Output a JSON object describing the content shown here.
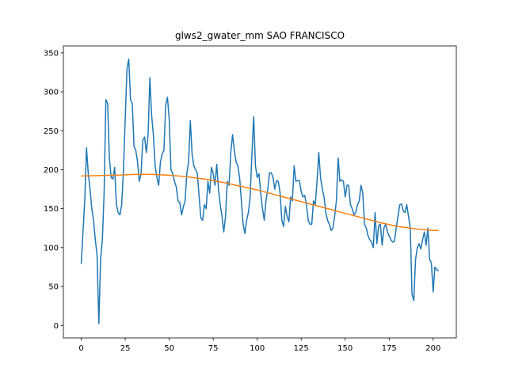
{
  "chart_data": {
    "type": "line",
    "title": "glws2_gwater_mm SAO FRANCISCO",
    "x": [
      0,
      1,
      2,
      3,
      4,
      5,
      6,
      7,
      8,
      9,
      10,
      11,
      12,
      13,
      14,
      15,
      16,
      17,
      18,
      19,
      20,
      21,
      22,
      23,
      24,
      25,
      26,
      27,
      28,
      29,
      30,
      31,
      32,
      33,
      34,
      35,
      36,
      37,
      38,
      39,
      40,
      41,
      42,
      43,
      44,
      45,
      46,
      47,
      48,
      49,
      50,
      51,
      52,
      53,
      54,
      55,
      56,
      57,
      58,
      59,
      60,
      61,
      62,
      63,
      64,
      65,
      66,
      67,
      68,
      69,
      70,
      71,
      72,
      73,
      74,
      75,
      76,
      77,
      78,
      79,
      80,
      81,
      82,
      83,
      84,
      85,
      86,
      87,
      88,
      89,
      90,
      91,
      92,
      93,
      94,
      95,
      96,
      97,
      98,
      99,
      100,
      101,
      102,
      103,
      104,
      105,
      106,
      107,
      108,
      109,
      110,
      111,
      112,
      113,
      114,
      115,
      116,
      117,
      118,
      119,
      120,
      121,
      122,
      123,
      124,
      125,
      126,
      127,
      128,
      129,
      130,
      131,
      132,
      133,
      134,
      135,
      136,
      137,
      138,
      139,
      140,
      141,
      142,
      143,
      144,
      145,
      146,
      147,
      148,
      149,
      150,
      151,
      152,
      153,
      154,
      155,
      156,
      157,
      158,
      159,
      160,
      161,
      162,
      163,
      164,
      165,
      166,
      167,
      168,
      169,
      170,
      171,
      172,
      173,
      174,
      175,
      176,
      177,
      178,
      179,
      180,
      181,
      182,
      183,
      184,
      185,
      186,
      187,
      188,
      189,
      190,
      191,
      192,
      193,
      194,
      195,
      196,
      197,
      198,
      199,
      200,
      201,
      202,
      203
    ],
    "series": [
      {
        "color": "#1f77b4",
        "values": [
          79,
          120,
          160,
          228,
          195,
          175,
          150,
          135,
          110,
          90,
          2,
          85,
          110,
          170,
          290,
          285,
          215,
          190,
          188,
          203,
          155,
          145,
          142,
          155,
          200,
          265,
          330,
          342,
          290,
          285,
          230,
          225,
          210,
          185,
          195,
          238,
          242,
          222,
          245,
          318,
          270,
          245,
          205,
          190,
          180,
          210,
          220,
          225,
          283,
          293,
          265,
          200,
          195,
          185,
          178,
          160,
          158,
          142,
          152,
          160,
          195,
          210,
          263,
          220,
          205,
          200,
          195,
          165,
          138,
          135,
          155,
          150,
          185,
          170,
          203,
          195,
          180,
          207,
          175,
          155,
          140,
          120,
          140,
          185,
          180,
          222,
          245,
          225,
          210,
          205,
          190,
          160,
          130,
          118,
          135,
          145,
          165,
          220,
          268,
          205,
          190,
          195,
          170,
          150,
          135,
          160,
          175,
          196,
          196,
          190,
          175,
          186,
          185,
          170,
          135,
          127,
          153,
          140,
          133,
          165,
          160,
          205,
          185,
          186,
          186,
          172,
          165,
          167,
          155,
          135,
          130,
          130,
          160,
          155,
          185,
          222,
          190,
          175,
          165,
          145,
          135,
          130,
          122,
          125,
          140,
          160,
          215,
          185,
          187,
          185,
          165,
          180,
          180,
          155,
          150,
          142,
          145,
          155,
          160,
          180,
          170,
          130,
          125,
          115,
          110,
          107,
          100,
          145,
          105,
          128,
          130,
          103,
          125,
          130,
          120,
          115,
          110,
          107,
          108,
          125,
          140,
          155,
          156,
          147,
          145,
          155,
          140,
          125,
          40,
          32,
          85,
          100,
          105,
          98,
          110,
          120,
          103,
          125,
          85,
          80,
          43,
          75,
          72,
          70
        ]
      },
      {
        "color": "#ff7f0e",
        "x": [
          0,
          10,
          20,
          30,
          40,
          50,
          60,
          70,
          80,
          90,
          100,
          110,
          120,
          130,
          140,
          150,
          160,
          170,
          180,
          190,
          200,
          203
        ],
        "values": [
          192,
          192.5,
          193,
          194,
          194,
          193,
          191,
          188,
          184,
          179,
          174,
          168,
          162,
          156,
          150,
          144,
          138,
          132,
          127,
          124,
          122,
          122
        ]
      }
    ],
    "xlim": [
      -10.15,
      213.15
    ],
    "xticks": [
      0,
      25,
      50,
      75,
      100,
      125,
      150,
      175,
      200
    ],
    "ylim": [
      -16,
      359
    ],
    "yticks": [
      0,
      50,
      100,
      150,
      200,
      250,
      300,
      350
    ]
  }
}
